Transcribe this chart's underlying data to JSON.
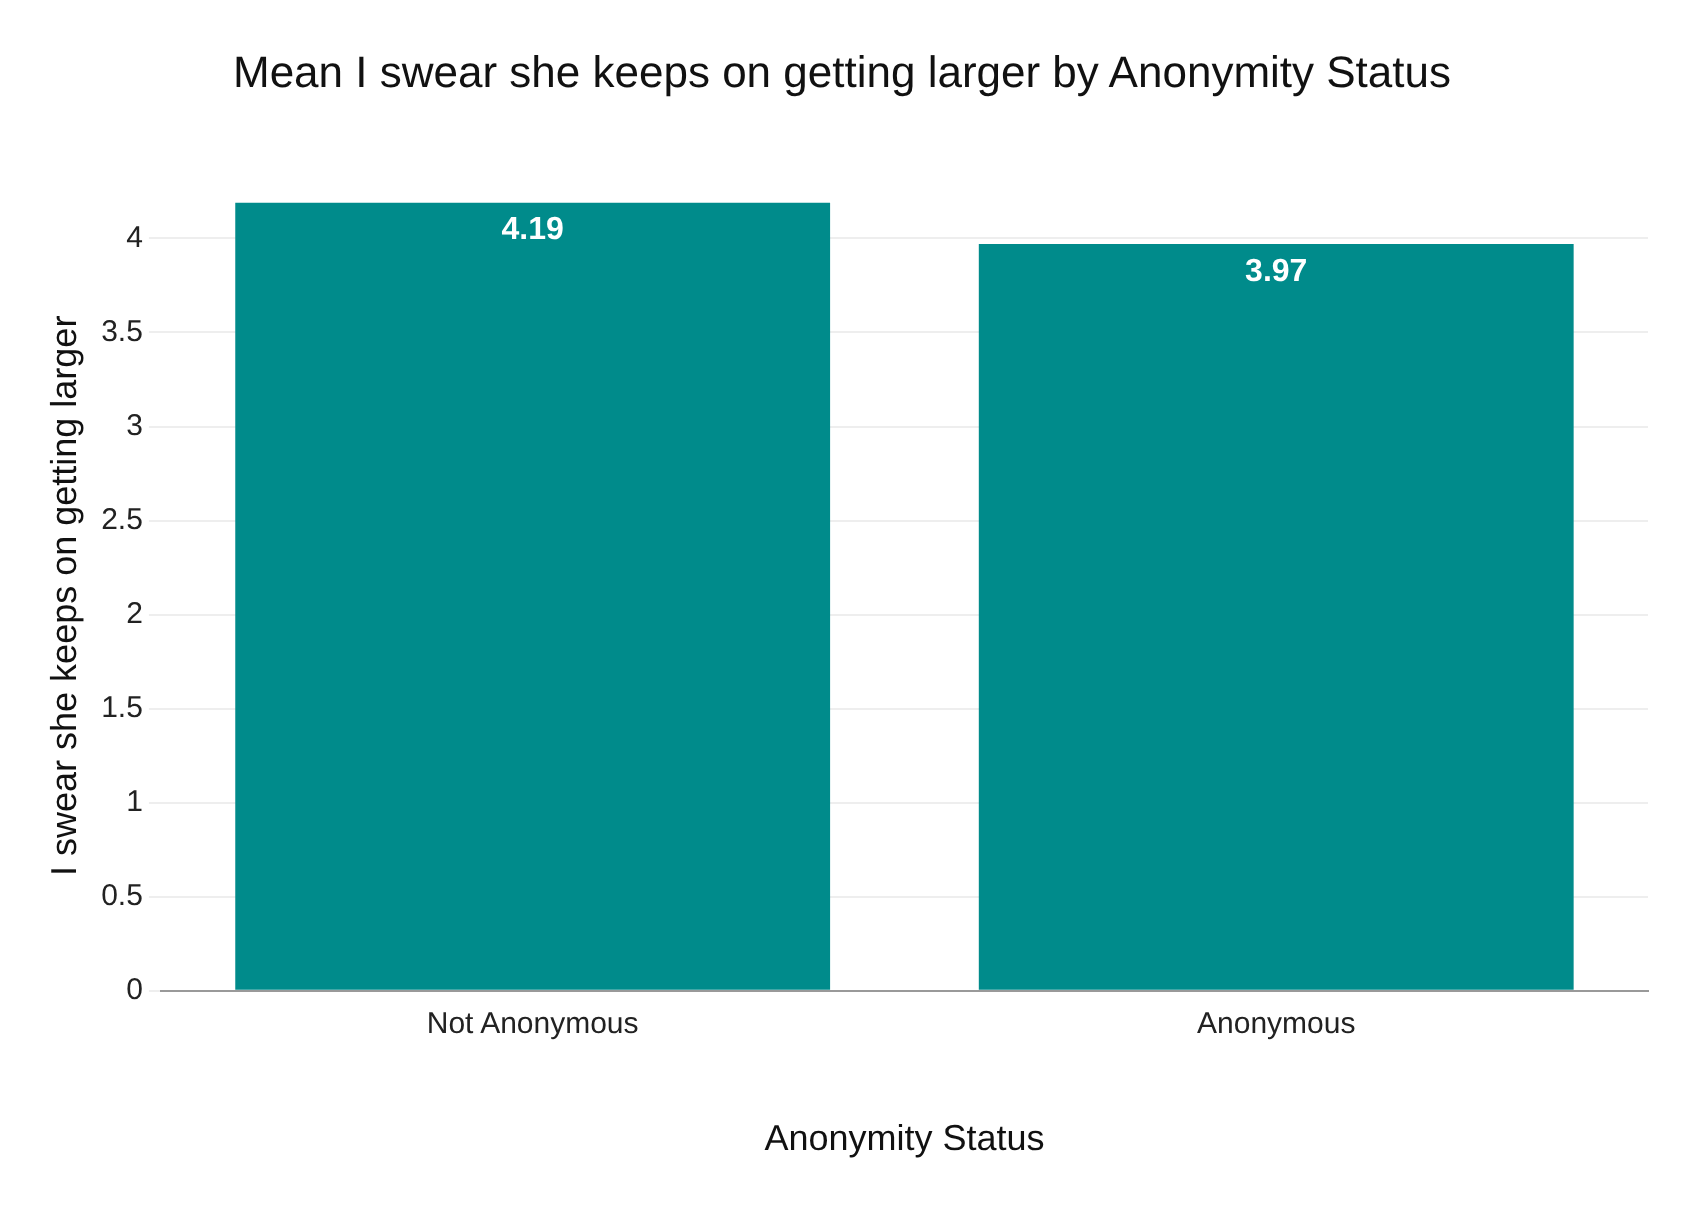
{
  "chart_data": {
    "type": "bar",
    "title": "Mean I swear she keeps on getting larger by Anonymity Status",
    "xlabel": "Anonymity Status",
    "ylabel": "I swear she keeps on getting larger",
    "categories": [
      "Not Anonymous",
      "Anonymous"
    ],
    "values": [
      4.19,
      3.97
    ],
    "color": "#008b8b",
    "ylim": [
      0,
      4.2
    ],
    "yticks": [
      0,
      0.5,
      1,
      1.5,
      2,
      2.5,
      3,
      3.5,
      4
    ],
    "grid": "y",
    "data_labels": true,
    "legend": false
  }
}
